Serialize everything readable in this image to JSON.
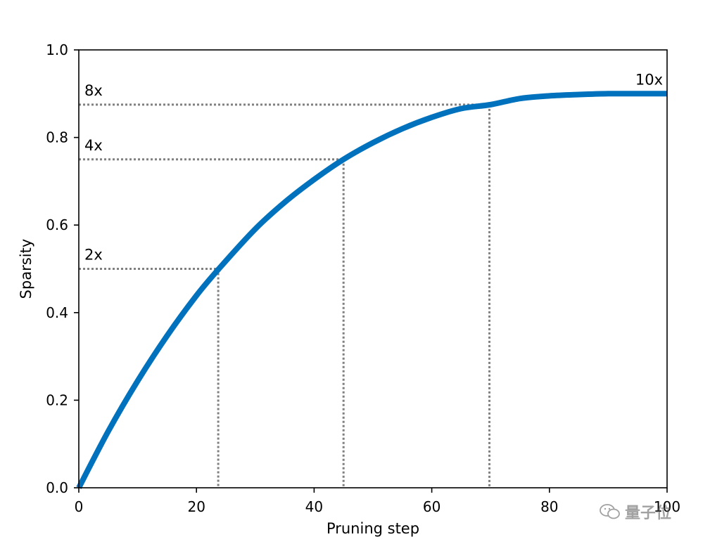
{
  "chart_data": {
    "type": "line",
    "title": "",
    "xlabel": "Pruning step",
    "ylabel": "Sparsity",
    "xlim": [
      0,
      100
    ],
    "ylim": [
      0.0,
      1.0
    ],
    "x_ticks": [
      0,
      20,
      40,
      60,
      80,
      100
    ],
    "x_tick_labels": [
      "0",
      "20",
      "40",
      "60",
      "80",
      "100"
    ],
    "y_ticks": [
      0.0,
      0.2,
      0.4,
      0.6,
      0.8,
      1.0
    ],
    "y_tick_labels": [
      "0.0",
      "0.2",
      "0.4",
      "0.6",
      "0.8",
      "1.0"
    ],
    "grid": false,
    "series": [
      {
        "color": "#0072bd",
        "x": [
          0,
          5,
          10,
          15,
          20,
          24,
          30,
          35,
          40,
          45,
          50,
          55,
          60,
          65,
          70,
          75,
          80,
          85,
          90,
          95,
          100
        ],
        "values": [
          0.0,
          0.129,
          0.244,
          0.347,
          0.439,
          0.503,
          0.591,
          0.652,
          0.704,
          0.75,
          0.788,
          0.82,
          0.846,
          0.866,
          0.875,
          0.889,
          0.895,
          0.898,
          0.9,
          0.9,
          0.9
        ]
      }
    ],
    "annotations": [
      {
        "label": "2x",
        "y": 0.5,
        "x": 23.7
      },
      {
        "label": "4x",
        "y": 0.75,
        "x": 45.0
      },
      {
        "label": "8x",
        "y": 0.875,
        "x": 69.8
      },
      {
        "label": "10x",
        "y": 0.9,
        "x": 100
      }
    ],
    "reference_line_color": "#808080"
  },
  "watermark": {
    "icon": "wechat-icon",
    "text": "量子位"
  }
}
